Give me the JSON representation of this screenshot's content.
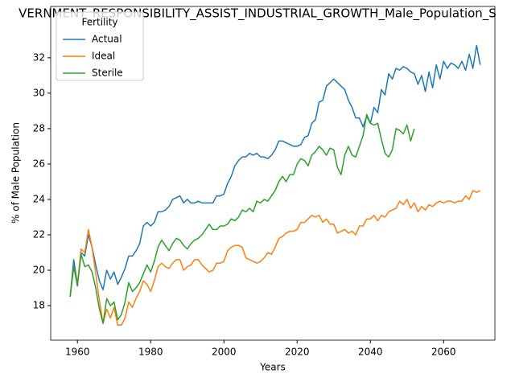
{
  "chart_data": {
    "type": "line",
    "title": "VERNMENT_RESPONSIBILITY_ASSIST_INDUSTRIAL_GROWTH_Male_Population_S",
    "xlabel": "Years",
    "ylabel": "% of Male Population",
    "legend_title": "Fertility",
    "legend": "upper left",
    "grid": false,
    "x": [
      1958,
      1959,
      1960,
      1961,
      1962,
      1963,
      1964,
      1965,
      1966,
      1967,
      1968,
      1969,
      1970,
      1971,
      1972,
      1973,
      1974,
      1975,
      1976,
      1977,
      1978,
      1979,
      1980,
      1981,
      1982,
      1983,
      1984,
      1985,
      1986,
      1987,
      1988,
      1989,
      1990,
      1991,
      1992,
      1993,
      1994,
      1995,
      1996,
      1997,
      1998,
      1999,
      2000,
      2001,
      2002,
      2003,
      2004,
      2005,
      2006,
      2007,
      2008,
      2009,
      2010,
      2011,
      2012,
      2013,
      2014,
      2015,
      2016,
      2017,
      2018,
      2019,
      2020,
      2021,
      2022,
      2023,
      2024,
      2025,
      2026,
      2027,
      2028,
      2029,
      2030,
      2031,
      2032,
      2033,
      2034,
      2035,
      2036,
      2037,
      2038,
      2039,
      2040,
      2041,
      2042,
      2043,
      2044,
      2045,
      2046,
      2047,
      2048,
      2049,
      2050,
      2051,
      2052,
      2053,
      2054,
      2055,
      2056,
      2057,
      2058,
      2059,
      2060,
      2061,
      2062,
      2063,
      2064,
      2065,
      2066,
      2067,
      2068,
      2069,
      2070
    ],
    "series": [
      {
        "name": "Actual",
        "color": "#1f77b4",
        "values": [
          18.5,
          20.6,
          19.2,
          21.0,
          20.8,
          22.0,
          21.3,
          20.3,
          19.4,
          18.9,
          20.0,
          19.5,
          19.9,
          19.2,
          19.6,
          20.1,
          20.8,
          20.8,
          21.1,
          21.5,
          22.5,
          22.7,
          22.5,
          22.7,
          23.3,
          23.3,
          23.4,
          23.6,
          24.0,
          24.1,
          24.2,
          23.8,
          24.0,
          23.8,
          23.8,
          23.9,
          23.8,
          23.8,
          23.8,
          23.8,
          24.2,
          24.2,
          24.3,
          24.9,
          25.3,
          25.9,
          26.2,
          26.4,
          26.4,
          26.6,
          26.5,
          26.6,
          26.4,
          26.4,
          26.3,
          26.5,
          26.8,
          27.3,
          27.3,
          27.2,
          27.1,
          27.0,
          27.0,
          27.1,
          27.5,
          27.6,
          28.3,
          28.5,
          29.5,
          29.6,
          30.4,
          30.6,
          30.8,
          30.6,
          30.4,
          30.2,
          29.6,
          29.2,
          28.6,
          28.6,
          28.1,
          28.7,
          28.3,
          29.2,
          28.9,
          30.2,
          29.9,
          31.1,
          30.8,
          31.4,
          31.3,
          31.5,
          31.4,
          31.2,
          31.1,
          30.5,
          31.0,
          30.1,
          31.2,
          30.3,
          31.6,
          30.8,
          31.8,
          31.4,
          31.7,
          31.6,
          31.4,
          31.8,
          31.3,
          32.2,
          31.4,
          32.7,
          31.6
        ]
      },
      {
        "name": "Ideal",
        "color": "#ff7f0e",
        "values": [
          18.5,
          20.2,
          19.2,
          21.2,
          21.0,
          22.3,
          21.3,
          19.8,
          18.3,
          17.0,
          17.8,
          17.3,
          17.9,
          16.9,
          16.9,
          17.3,
          18.2,
          17.9,
          18.4,
          18.8,
          19.4,
          19.2,
          18.8,
          19.4,
          20.2,
          20.4,
          20.2,
          20.1,
          20.4,
          20.6,
          20.6,
          20.0,
          20.2,
          20.3,
          20.6,
          20.6,
          20.3,
          20.1,
          19.9,
          20.0,
          20.4,
          20.4,
          20.5,
          21.1,
          21.3,
          21.4,
          21.4,
          21.3,
          20.7,
          20.6,
          20.5,
          20.4,
          20.5,
          20.7,
          21.0,
          20.9,
          21.3,
          21.8,
          21.9,
          22.1,
          22.2,
          22.2,
          22.3,
          22.7,
          22.7,
          22.9,
          23.1,
          23.0,
          23.1,
          22.7,
          22.9,
          22.6,
          22.6,
          22.1,
          22.2,
          22.3,
          22.1,
          22.2,
          22.0,
          22.5,
          22.5,
          22.9,
          22.9,
          23.1,
          22.8,
          23.1,
          23.0,
          23.3,
          23.4,
          23.5,
          23.9,
          23.7,
          24.0,
          23.5,
          23.8,
          23.3,
          23.6,
          23.4,
          23.7,
          23.6,
          23.8,
          23.9,
          23.8,
          23.9,
          23.9,
          23.8,
          23.9,
          23.9,
          24.2,
          24.0,
          24.5,
          24.4,
          24.5
        ]
      },
      {
        "name": "Sterile",
        "color": "#2ca02c",
        "values": [
          18.5,
          20.2,
          19.1,
          20.9,
          20.2,
          20.3,
          19.9,
          19.0,
          17.8,
          17.0,
          18.4,
          18.0,
          18.2,
          17.2,
          17.5,
          18.2,
          19.3,
          18.8,
          19.0,
          19.3,
          19.8,
          20.3,
          19.9,
          20.5,
          21.3,
          21.7,
          21.4,
          21.1,
          21.5,
          21.8,
          21.7,
          21.4,
          21.2,
          21.5,
          21.7,
          21.8,
          22.0,
          22.3,
          22.6,
          22.3,
          22.3,
          22.5,
          22.5,
          22.6,
          22.9,
          22.8,
          23.0,
          23.4,
          23.3,
          23.5,
          23.3,
          23.9,
          23.8,
          24.0,
          23.9,
          24.2,
          24.5,
          25.0,
          25.3,
          25.0,
          25.4,
          25.4,
          26.0,
          26.3,
          26.2,
          25.9,
          26.5,
          26.7,
          27.0,
          26.8,
          26.5,
          26.9,
          26.8,
          25.8,
          25.4,
          26.5,
          27.0,
          26.5,
          26.4,
          27.0,
          27.6,
          28.8,
          28.3,
          28.2,
          28.3,
          27.4,
          26.6,
          26.4,
          26.8,
          28.0,
          27.9,
          27.7,
          28.2,
          27.3,
          28.0,
          null,
          null,
          null,
          null,
          null,
          null,
          null,
          null,
          null,
          null,
          null,
          null,
          null,
          null,
          null,
          null,
          null,
          null
        ]
      }
    ],
    "xlim": [
      1952.7,
      2074
    ],
    "xticks": [
      1960,
      1980,
      2000,
      2020,
      2040,
      2060
    ],
    "ylim": [
      16.05,
      34.9
    ],
    "yticks": [
      18,
      20,
      22,
      24,
      26,
      28,
      30,
      32
    ]
  }
}
